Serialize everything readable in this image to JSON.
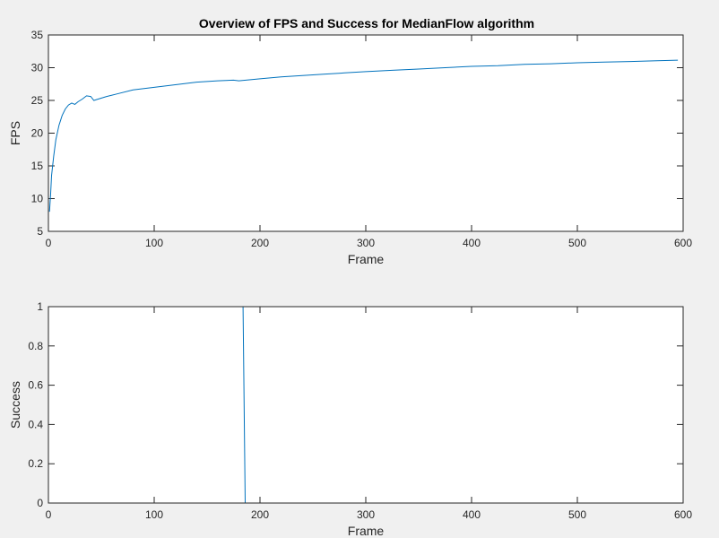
{
  "figure": {
    "title": "Overview of FPS and Success for MedianFlow algorithm"
  },
  "chart_data": [
    {
      "type": "line",
      "title": "Overview of FPS and Success for MedianFlow algorithm",
      "xlabel": "Frame",
      "ylabel": "FPS",
      "xlim": [
        0,
        600
      ],
      "ylim": [
        5,
        35
      ],
      "xticks": [
        0,
        100,
        200,
        300,
        400,
        500,
        600
      ],
      "yticks": [
        5,
        10,
        15,
        20,
        25,
        30,
        35
      ],
      "grid": false,
      "color": "#0072bd",
      "series": [
        {
          "x": [
            1,
            2,
            3,
            5,
            7,
            10,
            13,
            16,
            19,
            22,
            25,
            28,
            32,
            36,
            40,
            43,
            47,
            55,
            65,
            80,
            100,
            120,
            140,
            160,
            175,
            180,
            200,
            220,
            240,
            260,
            280,
            300,
            325,
            350,
            375,
            400,
            425,
            450,
            475,
            500,
            525,
            550,
            575,
            595
          ],
          "y": [
            8,
            10.5,
            13.5,
            16.5,
            19,
            21.2,
            22.7,
            23.7,
            24.3,
            24.6,
            24.4,
            24.8,
            25.2,
            25.7,
            25.6,
            25.0,
            25.2,
            25.6,
            26.0,
            26.6,
            27.0,
            27.4,
            27.8,
            28.0,
            28.1,
            28.0,
            28.3,
            28.6,
            28.8,
            29.0,
            29.2,
            29.4,
            29.6,
            29.8,
            30.0,
            30.2,
            30.3,
            30.5,
            30.6,
            30.75,
            30.85,
            30.95,
            31.05,
            31.15
          ]
        }
      ]
    },
    {
      "type": "line",
      "title": "",
      "xlabel": "Frame",
      "ylabel": "Success",
      "xlim": [
        0,
        600
      ],
      "ylim": [
        0,
        1
      ],
      "xticks": [
        0,
        100,
        200,
        300,
        400,
        500,
        600
      ],
      "yticks": [
        0,
        0.2,
        0.4,
        0.6,
        0.8,
        1
      ],
      "grid": false,
      "color": "#0072bd",
      "series": [
        {
          "x": [
            1,
            184,
            186,
            595
          ],
          "y": [
            1,
            1,
            0,
            0
          ]
        }
      ]
    }
  ]
}
